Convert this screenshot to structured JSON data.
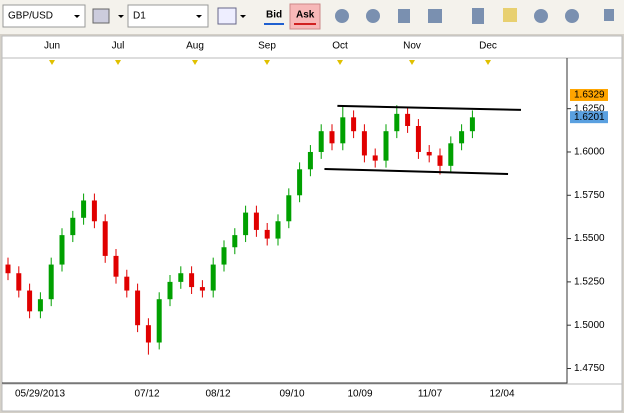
{
  "toolbar": {
    "symbol": "GBP/USD",
    "timeframe": "D1",
    "bid": "Bid",
    "ask": "Ask"
  },
  "chart_data": {
    "type": "candlestick",
    "ohlc": [
      [
        1.535,
        1.539,
        1.526,
        1.53
      ],
      [
        1.53,
        1.534,
        1.516,
        1.52
      ],
      [
        1.52,
        1.524,
        1.504,
        1.508
      ],
      [
        1.508,
        1.519,
        1.504,
        1.515
      ],
      [
        1.515,
        1.539,
        1.511,
        1.535
      ],
      [
        1.535,
        1.556,
        1.531,
        1.552
      ],
      [
        1.552,
        1.566,
        1.548,
        1.562
      ],
      [
        1.562,
        1.576,
        1.558,
        1.572
      ],
      [
        1.572,
        1.576,
        1.556,
        1.56
      ],
      [
        1.56,
        1.564,
        1.536,
        1.54
      ],
      [
        1.54,
        1.544,
        1.524,
        1.528
      ],
      [
        1.528,
        1.532,
        1.516,
        1.52
      ],
      [
        1.52,
        1.524,
        1.496,
        1.5
      ],
      [
        1.5,
        1.504,
        1.483,
        1.49
      ],
      [
        1.49,
        1.519,
        1.486,
        1.515
      ],
      [
        1.515,
        1.529,
        1.511,
        1.525
      ],
      [
        1.525,
        1.534,
        1.521,
        1.53
      ],
      [
        1.53,
        1.534,
        1.518,
        1.522
      ],
      [
        1.522,
        1.526,
        1.516,
        1.52
      ],
      [
        1.52,
        1.539,
        1.516,
        1.535
      ],
      [
        1.535,
        1.549,
        1.531,
        1.545
      ],
      [
        1.545,
        1.556,
        1.541,
        1.552
      ],
      [
        1.552,
        1.569,
        1.548,
        1.565
      ],
      [
        1.565,
        1.569,
        1.551,
        1.555
      ],
      [
        1.555,
        1.559,
        1.546,
        1.55
      ],
      [
        1.55,
        1.564,
        1.546,
        1.56
      ],
      [
        1.56,
        1.579,
        1.556,
        1.575
      ],
      [
        1.575,
        1.594,
        1.571,
        1.59
      ],
      [
        1.59,
        1.604,
        1.586,
        1.6
      ],
      [
        1.6,
        1.616,
        1.596,
        1.612
      ],
      [
        1.612,
        1.616,
        1.601,
        1.605
      ],
      [
        1.605,
        1.626,
        1.601,
        1.62
      ],
      [
        1.62,
        1.624,
        1.608,
        1.612
      ],
      [
        1.612,
        1.616,
        1.594,
        1.598
      ],
      [
        1.598,
        1.602,
        1.591,
        1.595
      ],
      [
        1.595,
        1.616,
        1.591,
        1.612
      ],
      [
        1.612,
        1.627,
        1.608,
        1.622
      ],
      [
        1.622,
        1.626,
        1.611,
        1.615
      ],
      [
        1.615,
        1.619,
        1.596,
        1.6
      ],
      [
        1.6,
        1.604,
        1.594,
        1.598
      ],
      [
        1.598,
        1.602,
        1.587,
        1.592
      ],
      [
        1.592,
        1.609,
        1.588,
        1.605
      ],
      [
        1.605,
        1.616,
        1.601,
        1.612
      ],
      [
        1.612,
        1.624,
        1.608,
        1.62
      ]
    ],
    "up_color": "#00a000",
    "down_color": "#e00000",
    "ylim": [
      1.4672,
      1.6531
    ],
    "yticks": [
      {
        "value": 1.625,
        "label": "1.6250"
      },
      {
        "value": 1.6,
        "label": "1.6000"
      },
      {
        "value": 1.575,
        "label": "1.5750"
      },
      {
        "value": 1.55,
        "label": "1.5500"
      },
      {
        "value": 1.525,
        "label": "1.5250"
      },
      {
        "value": 1.5,
        "label": "1.5000"
      },
      {
        "value": 1.475,
        "label": "1.4750"
      }
    ],
    "price_markers": [
      {
        "value": 1.6329,
        "label": "1.6329",
        "color": "#ffa500"
      },
      {
        "value": 1.6201,
        "label": "1.6201",
        "color": "#5aa0e0"
      }
    ],
    "trendlines": [
      {
        "x": [
          30.5,
          47.5
        ],
        "y": [
          1.6266,
          1.6243
        ]
      },
      {
        "x": [
          29.3,
          46.3
        ],
        "y": [
          1.5902,
          1.5873
        ]
      }
    ],
    "month_labels": [
      "Jun",
      "Jul",
      "Aug",
      "Sep",
      "Oct",
      "Nov",
      "Dec"
    ],
    "date_labels": [
      "05/29/2013",
      "07/12",
      "08/12",
      "09/10",
      "10/09",
      "11/07",
      "12/04"
    ]
  }
}
